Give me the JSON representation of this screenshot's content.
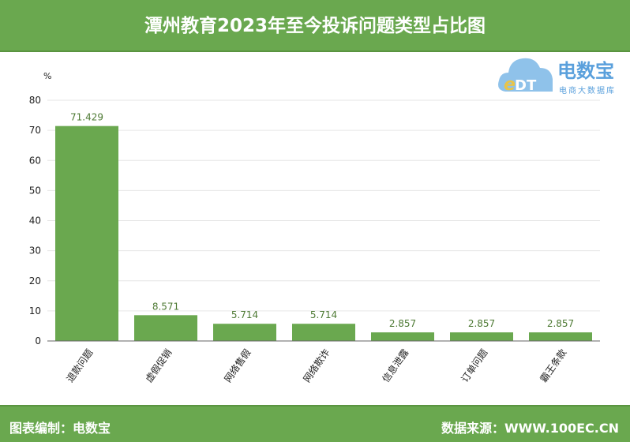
{
  "header": {
    "title": "潭州教育2023年至今投诉问题类型占比图"
  },
  "logo": {
    "name": "电数宝",
    "subtitle": "电商大数据库",
    "mark": "eDT"
  },
  "footer": {
    "left": "图表编制：电数宝",
    "right": "数据来源：WWW.100EC.CN"
  },
  "colors": {
    "bar": "#6aa84f",
    "header": "#6aa84f",
    "label": "#4e7a34"
  },
  "chart_data": {
    "type": "bar",
    "title": "潭州教育2023年至今投诉问题类型占比图",
    "ylabel": "%",
    "ylim": [
      0,
      80
    ],
    "yticks": [
      0,
      10,
      20,
      30,
      40,
      50,
      60,
      70,
      80
    ],
    "categories": [
      "退款问题",
      "虚假促销",
      "网络售假",
      "网络欺诈",
      "信息泄露",
      "订单问题",
      "霸王条款"
    ],
    "values": [
      71.429,
      8.571,
      5.714,
      5.714,
      2.857,
      2.857,
      2.857
    ],
    "value_labels": [
      "71.429",
      "8.571",
      "5.714",
      "5.714",
      "2.857",
      "2.857",
      "2.857"
    ],
    "grid": true,
    "legend": "none"
  }
}
